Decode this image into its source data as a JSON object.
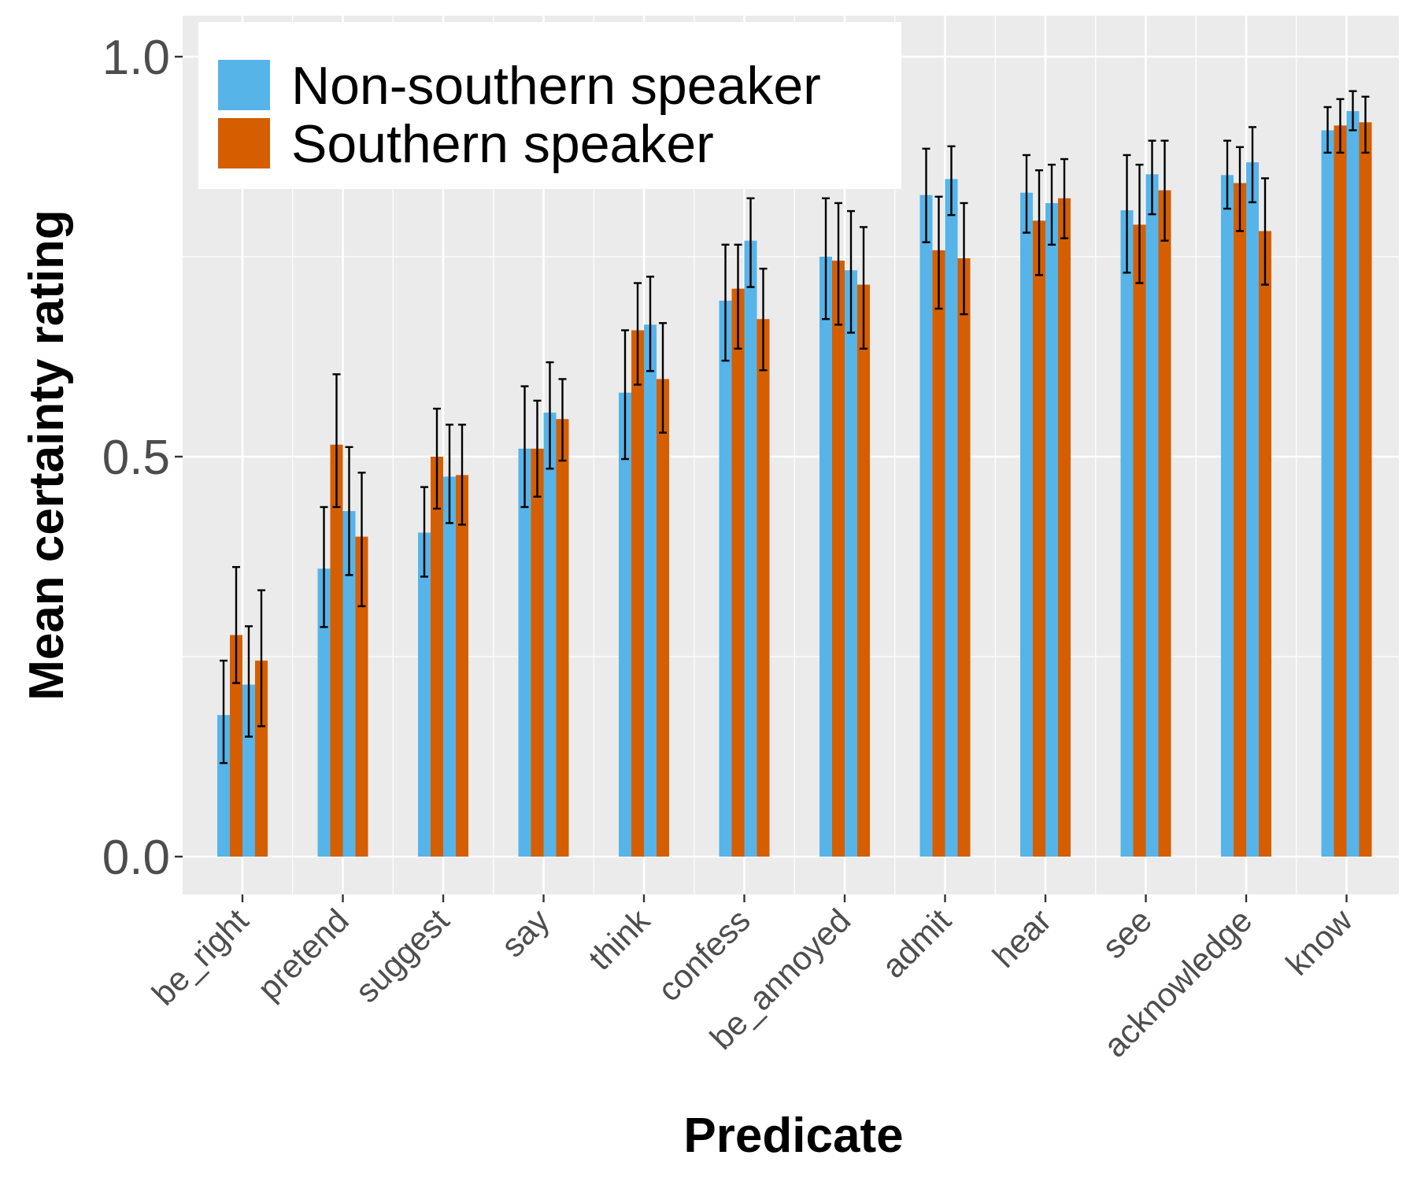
{
  "chart_data": {
    "type": "bar",
    "xlabel": "Predicate",
    "ylabel": "Mean certainty rating",
    "ylim": [
      -0.046,
      1.05
    ],
    "yticks": [
      "0.0",
      "0.5",
      "1.0"
    ],
    "ytick_values": [
      0,
      0.5,
      1.0
    ],
    "grid": true,
    "legend_position": "top-left",
    "categories": [
      "be_right",
      "pretend",
      "suggest",
      "say",
      "think",
      "confess",
      "be_annoyed",
      "admit",
      "hear",
      "see",
      "acknowledge",
      "know"
    ],
    "bars_per_category": [
      "Non-southern speaker",
      "Southern speaker",
      "Non-southern speaker",
      "Southern speaker"
    ],
    "legend": [
      {
        "name": "Non-southern speaker",
        "color": "#56B4E9"
      },
      {
        "name": "Southern speaker",
        "color": "#D55E00"
      }
    ],
    "values": [
      [
        0.177,
        0.277,
        0.215,
        0.245
      ],
      [
        0.36,
        0.515,
        0.432,
        0.4
      ],
      [
        0.405,
        0.5,
        0.475,
        0.477
      ],
      [
        0.51,
        0.51,
        0.555,
        0.547
      ],
      [
        0.58,
        0.658,
        0.665,
        0.597
      ],
      [
        0.695,
        0.71,
        0.77,
        0.672
      ],
      [
        0.75,
        0.745,
        0.733,
        0.715
      ],
      [
        0.827,
        0.758,
        0.847,
        0.748
      ],
      [
        0.83,
        0.795,
        0.817,
        0.823
      ],
      [
        0.808,
        0.79,
        0.853,
        0.833
      ],
      [
        0.852,
        0.842,
        0.868,
        0.782
      ],
      [
        0.908,
        0.914,
        0.932,
        0.918
      ]
    ],
    "err_low": [
      [
        0.117,
        0.217,
        0.15,
        0.163
      ],
      [
        0.287,
        0.437,
        0.352,
        0.313
      ],
      [
        0.35,
        0.435,
        0.417,
        0.415
      ],
      [
        0.437,
        0.45,
        0.485,
        0.495
      ],
      [
        0.497,
        0.59,
        0.607,
        0.53
      ],
      [
        0.62,
        0.635,
        0.712,
        0.608
      ],
      [
        0.672,
        0.665,
        0.655,
        0.635
      ],
      [
        0.768,
        0.685,
        0.802,
        0.678
      ],
      [
        0.78,
        0.727,
        0.765,
        0.773
      ],
      [
        0.73,
        0.717,
        0.803,
        0.77
      ],
      [
        0.81,
        0.782,
        0.818,
        0.715
      ],
      [
        0.88,
        0.88,
        0.908,
        0.88
      ]
    ],
    "err_high": [
      [
        0.245,
        0.362,
        0.288,
        0.333
      ],
      [
        0.437,
        0.603,
        0.512,
        0.48
      ],
      [
        0.462,
        0.56,
        0.54,
        0.54
      ],
      [
        0.588,
        0.57,
        0.618,
        0.597
      ],
      [
        0.658,
        0.717,
        0.725,
        0.667
      ],
      [
        0.765,
        0.765,
        0.823,
        0.735
      ],
      [
        0.823,
        0.817,
        0.807,
        0.787
      ],
      [
        0.885,
        0.825,
        0.888,
        0.817
      ],
      [
        0.877,
        0.858,
        0.865,
        0.872
      ],
      [
        0.877,
        0.865,
        0.895,
        0.895
      ],
      [
        0.895,
        0.887,
        0.912,
        0.848
      ],
      [
        0.937,
        0.947,
        0.957,
        0.95
      ]
    ]
  }
}
